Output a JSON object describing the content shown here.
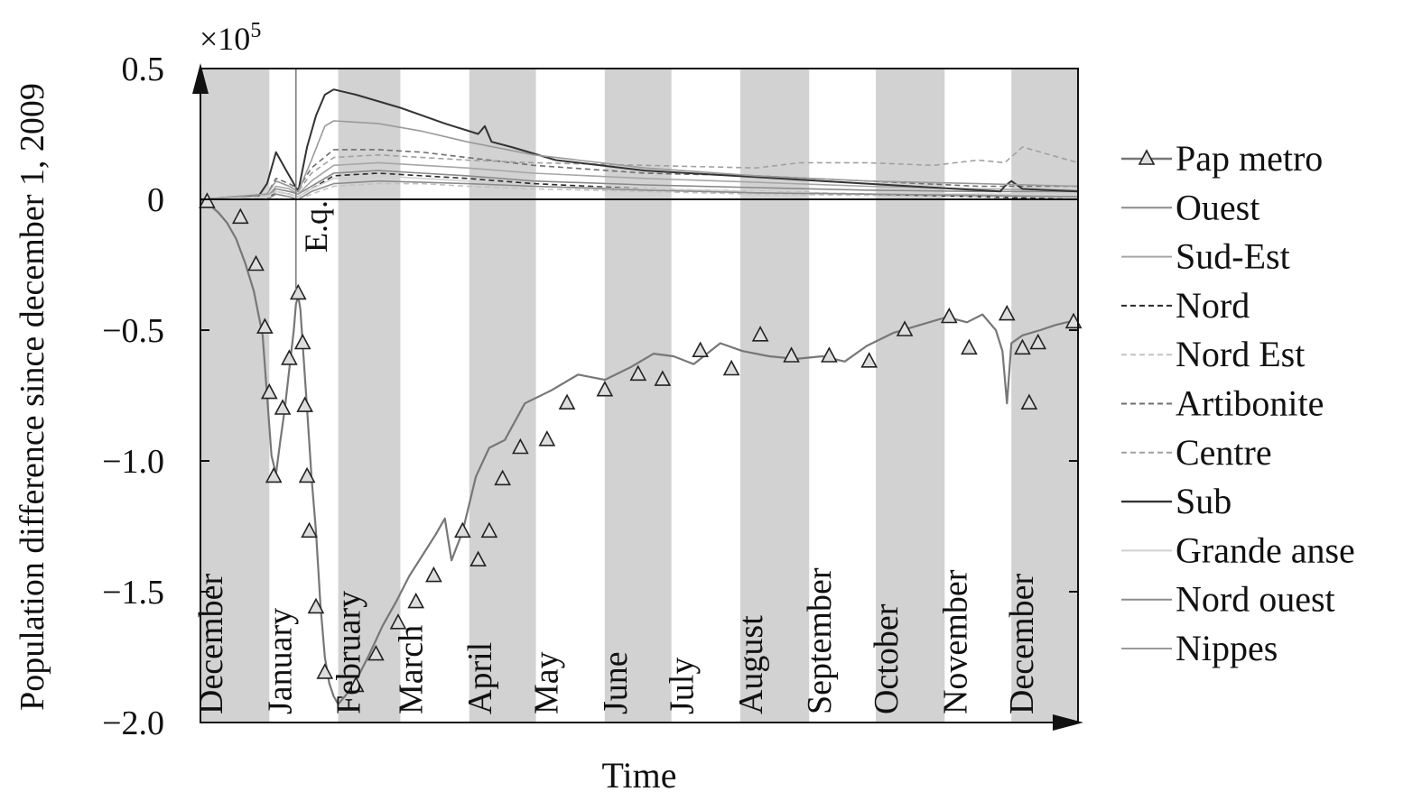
{
  "chart_data": {
    "type": "line",
    "ylabel": "Population difference since december 1, 2009",
    "xlabel": "Time",
    "y_multiplier": "×10",
    "y_multiplier_exp": "5",
    "ylim": [
      -2.0,
      0.5
    ],
    "yticks": [
      {
        "value": 0.5,
        "label": "0.5"
      },
      {
        "value": 0,
        "label": "0"
      },
      {
        "value": -0.5,
        "label": "−0.5"
      },
      {
        "value": -1.0,
        "label": "−1.0"
      },
      {
        "value": -1.5,
        "label": "−1.5"
      },
      {
        "value": -2.0,
        "label": "−2.0"
      }
    ],
    "grid": false,
    "xlim": [
      0,
      395
    ],
    "months": [
      {
        "label": "December",
        "start": 0,
        "end": 31,
        "shaded": true
      },
      {
        "label": "January",
        "start": 31,
        "end": 62,
        "shaded": false
      },
      {
        "label": "February",
        "start": 62,
        "end": 90,
        "shaded": true
      },
      {
        "label": "March",
        "start": 90,
        "end": 121,
        "shaded": false
      },
      {
        "label": "April",
        "start": 121,
        "end": 151,
        "shaded": true
      },
      {
        "label": "May",
        "start": 151,
        "end": 182,
        "shaded": false
      },
      {
        "label": "June",
        "start": 182,
        "end": 212,
        "shaded": true
      },
      {
        "label": "July",
        "start": 212,
        "end": 243,
        "shaded": false
      },
      {
        "label": "August",
        "start": 243,
        "end": 274,
        "shaded": true
      },
      {
        "label": "September",
        "start": 274,
        "end": 304,
        "shaded": false
      },
      {
        "label": "October",
        "start": 304,
        "end": 335,
        "shaded": true
      },
      {
        "label": "November",
        "start": 335,
        "end": 365,
        "shaded": false
      },
      {
        "label": "December",
        "start": 365,
        "end": 395,
        "shaded": true
      }
    ],
    "event": {
      "label": "E.q.",
      "x": 43
    },
    "legend_position": "right",
    "series": [
      {
        "name": "Pap metro",
        "color": "#777777",
        "dash": "",
        "marker": "triangle",
        "width": 2.2,
        "x": [
          0,
          4,
          8,
          12,
          16,
          20,
          24,
          28,
          30,
          32,
          34,
          36,
          38,
          40,
          42,
          43,
          44,
          45,
          46,
          48,
          50,
          52,
          54,
          56,
          58,
          60,
          62,
          66,
          70,
          76,
          82,
          88,
          94,
          100,
          106,
          110,
          113,
          118,
          124,
          130,
          137,
          146,
          158,
          170,
          182,
          194,
          204,
          213,
          222,
          234,
          244,
          256,
          268,
          280,
          290,
          300,
          312,
          324,
          336,
          345,
          352,
          358,
          361,
          363,
          365,
          370,
          378,
          385,
          395
        ],
        "y": [
          0,
          -0.02,
          -0.05,
          -0.09,
          -0.15,
          -0.24,
          -0.35,
          -0.52,
          -0.75,
          -0.98,
          -1.05,
          -0.92,
          -0.8,
          -0.65,
          -0.5,
          -0.4,
          -0.37,
          -0.42,
          -0.55,
          -0.8,
          -1.06,
          -1.27,
          -1.55,
          -1.75,
          -1.85,
          -1.9,
          -1.93,
          -1.89,
          -1.84,
          -1.74,
          -1.63,
          -1.54,
          -1.44,
          -1.36,
          -1.28,
          -1.22,
          -1.38,
          -1.27,
          -1.06,
          -0.95,
          -0.92,
          -0.78,
          -0.73,
          -0.67,
          -0.69,
          -0.64,
          -0.59,
          -0.6,
          -0.63,
          -0.55,
          -0.58,
          -0.6,
          -0.61,
          -0.6,
          -0.62,
          -0.56,
          -0.51,
          -0.48,
          -0.45,
          -0.47,
          -0.44,
          -0.5,
          -0.58,
          -0.78,
          -0.55,
          -0.52,
          -0.5,
          -0.48,
          -0.46
        ],
        "markers": [
          [
            3,
            -0.01
          ],
          [
            18,
            -0.07
          ],
          [
            25,
            -0.25
          ],
          [
            29,
            -0.49
          ],
          [
            31,
            -0.74
          ],
          [
            33,
            -1.06
          ],
          [
            37,
            -0.8
          ],
          [
            40,
            -0.61
          ],
          [
            44,
            -0.36
          ],
          [
            46,
            -0.55
          ],
          [
            47,
            -0.79
          ],
          [
            48,
            -1.06
          ],
          [
            49,
            -1.27
          ],
          [
            52,
            -1.56
          ],
          [
            56,
            -1.81
          ],
          [
            70,
            -1.86
          ],
          [
            79,
            -1.74
          ],
          [
            89,
            -1.62
          ],
          [
            97,
            -1.54
          ],
          [
            105,
            -1.44
          ],
          [
            118,
            -1.27
          ],
          [
            125,
            -1.38
          ],
          [
            130,
            -1.27
          ],
          [
            136,
            -1.07
          ],
          [
            144,
            -0.95
          ],
          [
            156,
            -0.92
          ],
          [
            165,
            -0.78
          ],
          [
            182,
            -0.73
          ],
          [
            197,
            -0.67
          ],
          [
            208,
            -0.69
          ],
          [
            225,
            -0.58
          ],
          [
            239,
            -0.65
          ],
          [
            252,
            -0.52
          ],
          [
            266,
            -0.6
          ],
          [
            283,
            -0.6
          ],
          [
            301,
            -0.62
          ],
          [
            317,
            -0.5
          ],
          [
            337,
            -0.45
          ],
          [
            346,
            -0.57
          ],
          [
            363,
            -0.44
          ],
          [
            370,
            -0.57
          ],
          [
            373,
            -0.78
          ],
          [
            377,
            -0.55
          ],
          [
            393,
            -0.47
          ]
        ]
      },
      {
        "name": "Ouest",
        "color": "#8a8a8a",
        "dash": "",
        "width": 1.6,
        "x": [
          0,
          30,
          34,
          40,
          44,
          50,
          60,
          80,
          100,
          120,
          150,
          200,
          250,
          300,
          350,
          395
        ],
        "y": [
          0,
          0.01,
          0.04,
          0.03,
          0.02,
          0.05,
          0.1,
          0.11,
          0.1,
          0.09,
          0.07,
          0.055,
          0.045,
          0.035,
          0.03,
          0.03
        ]
      },
      {
        "name": "Sud-Est",
        "color": "#a6a6a6",
        "dash": "",
        "width": 1.6,
        "x": [
          0,
          30,
          34,
          40,
          44,
          50,
          60,
          80,
          100,
          120,
          150,
          200,
          250,
          300,
          350,
          395
        ],
        "y": [
          0,
          0.01,
          0.05,
          0.04,
          0.02,
          0.07,
          0.13,
          0.14,
          0.13,
          0.12,
          0.1,
          0.08,
          0.065,
          0.05,
          0.04,
          0.035
        ]
      },
      {
        "name": "Nord",
        "color": "#2a2a2a",
        "dash": "6,4",
        "width": 1.6,
        "x": [
          0,
          30,
          34,
          40,
          44,
          50,
          60,
          80,
          100,
          120,
          150,
          200,
          250,
          300,
          350,
          395
        ],
        "y": [
          0,
          0.0,
          0.03,
          0.02,
          0.01,
          0.04,
          0.09,
          0.1,
          0.09,
          0.08,
          0.06,
          0.04,
          0.03,
          0.02,
          0.01,
          0.0
        ]
      },
      {
        "name": "Nord Est",
        "color": "#c2c2c2",
        "dash": "6,4",
        "width": 1.6,
        "x": [
          0,
          30,
          34,
          40,
          44,
          50,
          60,
          80,
          100,
          120,
          150,
          200,
          250,
          300,
          350,
          395
        ],
        "y": [
          0,
          0.0,
          0.02,
          0.01,
          0.0,
          0.02,
          0.05,
          0.06,
          0.06,
          0.05,
          0.04,
          0.03,
          0.02,
          0.015,
          0.01,
          0.01
        ]
      },
      {
        "name": "Artibonite",
        "color": "#6e6e6e",
        "dash": "6,4",
        "width": 1.6,
        "x": [
          0,
          30,
          34,
          40,
          44,
          50,
          60,
          80,
          100,
          120,
          150,
          200,
          250,
          300,
          350,
          395
        ],
        "y": [
          0,
          0.02,
          0.08,
          0.06,
          0.04,
          0.12,
          0.19,
          0.19,
          0.18,
          0.16,
          0.13,
          0.1,
          0.09,
          0.07,
          0.05,
          0.05
        ]
      },
      {
        "name": "Centre",
        "color": "#a0a0a0",
        "dash": "6,4",
        "width": 1.6,
        "x": [
          0,
          30,
          34,
          40,
          44,
          50,
          60,
          80,
          100,
          120,
          150,
          200,
          250,
          270,
          300,
          330,
          350,
          362,
          370,
          395
        ],
        "y": [
          0,
          0.02,
          0.07,
          0.05,
          0.03,
          0.1,
          0.16,
          0.17,
          0.16,
          0.15,
          0.14,
          0.13,
          0.12,
          0.14,
          0.14,
          0.13,
          0.15,
          0.14,
          0.2,
          0.14
        ]
      },
      {
        "name": "Sub",
        "color": "#333333",
        "dash": "",
        "width": 2.0,
        "x": [
          0,
          26,
          30,
          34,
          38,
          44,
          48,
          52,
          56,
          60,
          70,
          90,
          110,
          125,
          128,
          131,
          140,
          160,
          180,
          200,
          220,
          240,
          260,
          280,
          300,
          320,
          340,
          360,
          362,
          365,
          370,
          395
        ],
        "y": [
          0,
          0.01,
          0.06,
          0.18,
          0.12,
          0.03,
          0.2,
          0.32,
          0.4,
          0.42,
          0.4,
          0.35,
          0.29,
          0.25,
          0.28,
          0.22,
          0.2,
          0.15,
          0.13,
          0.11,
          0.1,
          0.09,
          0.08,
          0.07,
          0.06,
          0.05,
          0.04,
          0.03,
          0.05,
          0.07,
          0.04,
          0.03
        ]
      },
      {
        "name": "Grande anse",
        "color": "#d0d0d0",
        "dash": "",
        "width": 1.6,
        "x": [
          0,
          30,
          34,
          40,
          44,
          50,
          60,
          80,
          100,
          120,
          150,
          200,
          250,
          300,
          350,
          395
        ],
        "y": [
          0,
          0.01,
          0.03,
          0.02,
          0.01,
          0.04,
          0.08,
          0.09,
          0.08,
          0.07,
          0.05,
          0.04,
          0.03,
          0.02,
          0.02,
          0.02
        ]
      },
      {
        "name": "Nord ouest",
        "color": "#8c8c8c",
        "dash": "",
        "width": 1.6,
        "x": [
          0,
          30,
          34,
          40,
          44,
          50,
          60,
          80,
          100,
          120,
          150,
          200,
          250,
          300,
          350,
          395
        ],
        "y": [
          0,
          0.0,
          0.02,
          0.01,
          0.0,
          0.03,
          0.06,
          0.07,
          0.065,
          0.06,
          0.05,
          0.035,
          0.025,
          0.02,
          0.015,
          0.01
        ]
      },
      {
        "name": "Nippes",
        "color": "#9a9a9a",
        "dash": "",
        "width": 1.6,
        "x": [
          0,
          30,
          34,
          40,
          44,
          50,
          56,
          60,
          80,
          100,
          120,
          150,
          200,
          250,
          300,
          350,
          395
        ],
        "y": [
          0,
          0.02,
          0.07,
          0.05,
          0.03,
          0.15,
          0.28,
          0.3,
          0.29,
          0.26,
          0.22,
          0.17,
          0.12,
          0.09,
          0.07,
          0.06,
          0.05
        ]
      }
    ]
  }
}
